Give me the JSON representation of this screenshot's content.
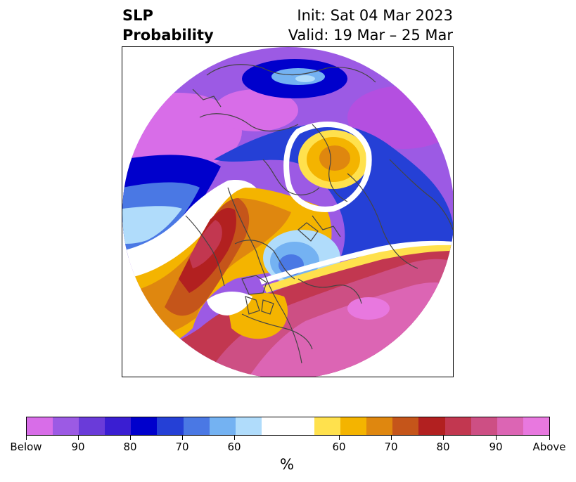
{
  "header": {
    "left_line1": "SLP",
    "left_line2": "Probability",
    "right_line1": "Init: Sat 04 Mar 2023",
    "right_line2": "Valid: 19 Mar – 25 Mar"
  },
  "colorbar": {
    "colors": [
      "#d86de8",
      "#9c5ae4",
      "#6a3bd9",
      "#3a1ed2",
      "#0000cc",
      "#2540d6",
      "#4a78e4",
      "#74b2f2",
      "#b0dcfb",
      "#ffffff",
      "#ffe14d",
      "#f4b400",
      "#df870f",
      "#c5551a",
      "#b22020",
      "#c23750",
      "#cd4f84",
      "#dc65b4",
      "#e878df"
    ],
    "labels": [
      "Below",
      "90",
      "80",
      "70",
      "60",
      "60",
      "70",
      "80",
      "90",
      "Above"
    ],
    "unit": "%"
  },
  "map": {
    "type": "polar stereographic probability map",
    "field": "SLP",
    "colors": {
      "coastline": "#444444",
      "below_strong": "#b44fe0",
      "below_core": "#0000cc",
      "above_core": "#c23750",
      "above_strong": "#e878df",
      "neutral": "#ffffff"
    }
  }
}
